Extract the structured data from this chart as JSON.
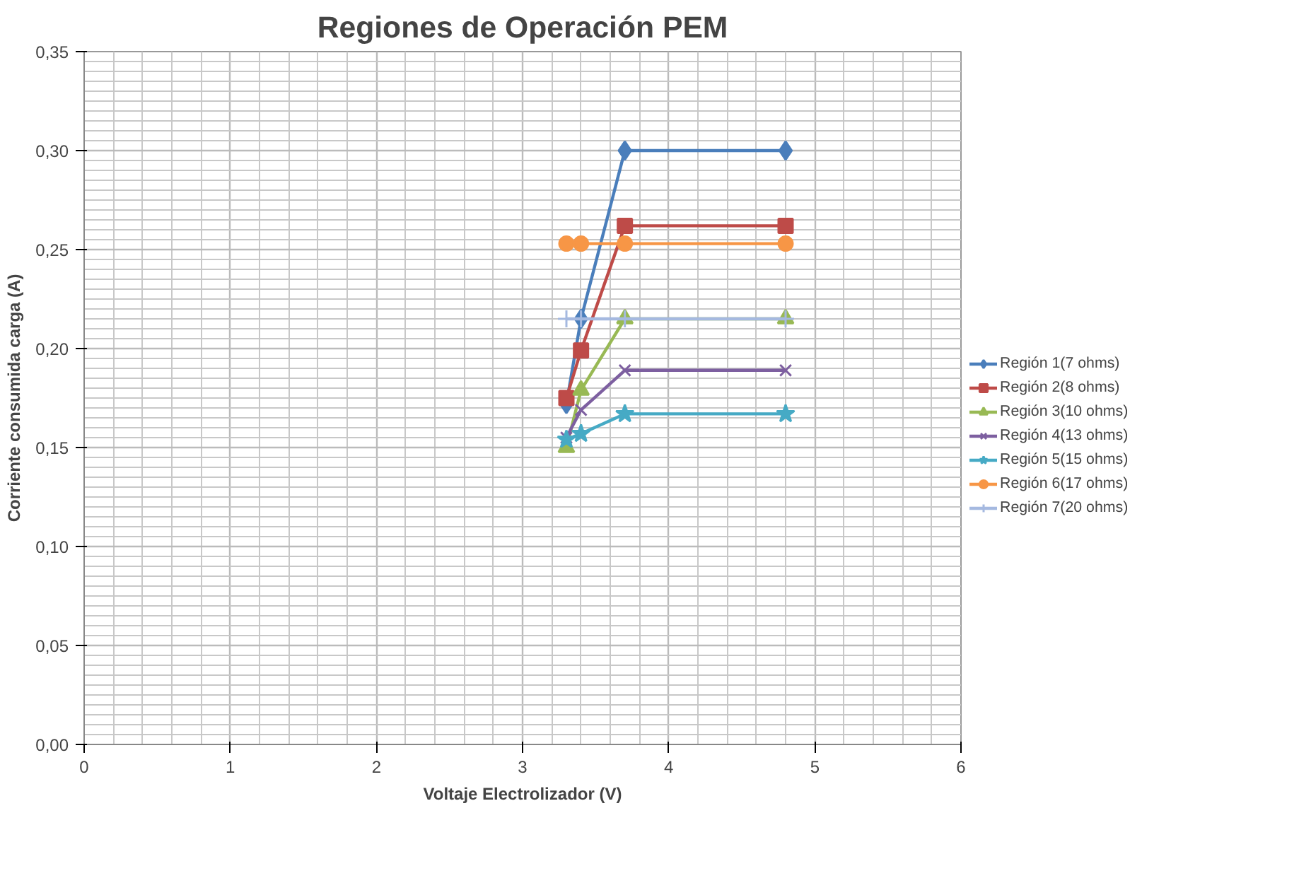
{
  "chart_data": {
    "type": "line",
    "title": "Regiones de Operación PEM",
    "xlabel": "Voltaje Electrolizador (V)",
    "ylabel": "Corriente consumida carga (A)",
    "x": [
      3.3,
      3.4,
      3.7,
      4.8
    ],
    "series": [
      {
        "name": "Región 1(7 ohms)",
        "color": "#4a7ebb",
        "marker": "diamond",
        "values": [
          0.172,
          0.215,
          0.3,
          0.3
        ]
      },
      {
        "name": "Región 2(8 ohms)",
        "color": "#be4b48",
        "marker": "square",
        "values": [
          0.175,
          0.199,
          0.262,
          0.262
        ]
      },
      {
        "name": "Región 3(10 ohms)",
        "color": "#98b954",
        "marker": "triangle",
        "values": [
          0.15,
          0.179,
          0.215,
          0.215
        ]
      },
      {
        "name": "Región 4(13 ohms)",
        "color": "#7d5fa0",
        "marker": "x",
        "values": [
          0.155,
          0.169,
          0.189,
          0.189
        ]
      },
      {
        "name": "Región 5(15 ohms)",
        "color": "#46aac5",
        "marker": "star",
        "values": [
          0.154,
          0.157,
          0.167,
          0.167
        ]
      },
      {
        "name": "Región 6(17 ohms)",
        "color": "#f79646",
        "marker": "circle",
        "values": [
          0.253,
          0.253,
          0.253,
          0.253
        ]
      },
      {
        "name": "Región 7(20 ohms)",
        "color": "#a5b9e0",
        "marker": "cross",
        "values": [
          0.215,
          0.215,
          0.215,
          0.215
        ]
      }
    ],
    "xlim": [
      0,
      6
    ],
    "xticks": [
      0,
      1,
      2,
      3,
      4,
      5,
      6
    ],
    "ylim": [
      0,
      0.35
    ],
    "yticks": [
      {
        "value": 0,
        "label": "0,00"
      },
      {
        "value": 0.05,
        "label": "0,05"
      },
      {
        "value": 0.1,
        "label": "0,10"
      },
      {
        "value": 0.15,
        "label": "0,15"
      },
      {
        "value": 0.2,
        "label": "0,20"
      },
      {
        "value": 0.25,
        "label": "0,25"
      },
      {
        "value": 0.3,
        "label": "0,30"
      },
      {
        "value": 0.35,
        "label": "0,35"
      }
    ],
    "grid": true,
    "legend": "right",
    "line_style": "solid"
  }
}
